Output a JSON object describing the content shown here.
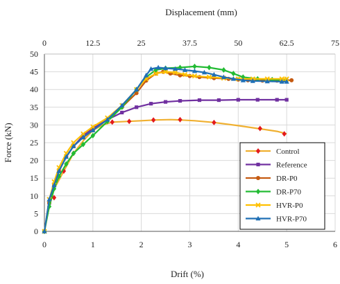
{
  "chart_data": {
    "type": "line",
    "xlabel": "Drift (%)",
    "ylabel": "Force (kN)",
    "x2label": "Displacement (mm)",
    "xlim": [
      0,
      6
    ],
    "ylim": [
      0,
      50
    ],
    "x2lim": [
      0,
      75
    ],
    "xticks": [
      "0",
      "1",
      "2",
      "3",
      "4",
      "5",
      "6"
    ],
    "x2ticks": [
      "0",
      "12.5",
      "25",
      "37.5",
      "50",
      "62.5",
      "75"
    ],
    "yticks": [
      "0",
      "5",
      "10",
      "15",
      "20",
      "25",
      "30",
      "35",
      "40",
      "45",
      "50"
    ],
    "grid": true,
    "legend_position": "bottom-right",
    "series": [
      {
        "name": "Control",
        "color": "#f0b030",
        "marker": "diamond",
        "marker_color": "#e31a1c",
        "x": [
          0,
          0.05,
          0.1,
          0.15,
          0.2,
          0.3,
          0.4,
          0.5,
          0.6,
          0.8,
          1.0,
          1.2,
          1.4,
          1.7,
          2.0,
          2.3,
          2.6,
          2.8,
          3.1,
          3.5,
          4.0,
          4.5,
          4.8,
          5.0
        ],
        "y": [
          0,
          4,
          7,
          9.5,
          12,
          14.5,
          17,
          19.5,
          22,
          25.5,
          28.5,
          30,
          30.8,
          31,
          31.2,
          31.4,
          31.5,
          31.4,
          31.2,
          30.7,
          29.8,
          28.8,
          28.2,
          27.5
        ],
        "marker_x": [
          0,
          0.2,
          0.4,
          0.6,
          1.05,
          1.4,
          1.75,
          2.25,
          2.8,
          3.5,
          4.45,
          4.95
        ],
        "marker_y": [
          0,
          9.5,
          17,
          22,
          29.5,
          30.8,
          31,
          31.4,
          31.5,
          30.7,
          29,
          27.5
        ]
      },
      {
        "name": "Reference",
        "color": "#7030a0",
        "marker": "square",
        "marker_color": "#7030a0",
        "x": [
          0,
          0.1,
          0.2,
          0.3,
          0.45,
          0.6,
          0.8,
          1.0,
          1.3,
          1.6,
          1.9,
          2.2,
          2.5,
          2.8,
          3.2,
          3.6,
          4.0,
          4.4,
          4.8,
          5.0
        ],
        "y": [
          0,
          8,
          13,
          17,
          21,
          24,
          27,
          29,
          31.5,
          33.5,
          35,
          36,
          36.5,
          36.8,
          37,
          37,
          37.1,
          37.1,
          37.1,
          37.1
        ]
      },
      {
        "name": "DR-P0",
        "color": "#c55a11",
        "marker": "circle",
        "marker_color": "#c55a11",
        "x": [
          0,
          0.1,
          0.2,
          0.3,
          0.45,
          0.6,
          0.8,
          1.0,
          1.3,
          1.6,
          1.9,
          2.1,
          2.3,
          2.45,
          2.6,
          2.8,
          3.0,
          3.2,
          3.5,
          3.8,
          4.0,
          4.2,
          4.5,
          4.8,
          5.0,
          5.1
        ],
        "y": [
          0,
          8,
          13,
          17,
          21,
          24,
          26.5,
          28.5,
          31.5,
          35,
          39,
          42.5,
          44.5,
          45,
          44.5,
          44,
          43.8,
          43.5,
          43.2,
          43,
          42.8,
          42.6,
          42.5,
          42.5,
          42.6,
          42.6
        ]
      },
      {
        "name": "DR-P70",
        "color": "#22bb33",
        "marker": "diamond",
        "marker_color": "#22bb33",
        "x": [
          0,
          0.1,
          0.2,
          0.3,
          0.45,
          0.6,
          0.8,
          1.0,
          1.3,
          1.6,
          1.9,
          2.1,
          2.3,
          2.5,
          2.8,
          3.1,
          3.4,
          3.7,
          3.9,
          4.1,
          4.4,
          4.7,
          5.0
        ],
        "y": [
          0,
          7,
          12,
          15.5,
          19,
          22,
          24.5,
          27,
          31,
          35,
          40,
          43.5,
          45.5,
          46,
          46.2,
          46.5,
          46.2,
          45.5,
          44.5,
          43.5,
          43,
          42.8,
          42.6
        ]
      },
      {
        "name": "HVR-P0",
        "color": "#ffc000",
        "marker": "cross",
        "marker_color": "#ffc000",
        "x": [
          0,
          0.1,
          0.2,
          0.3,
          0.45,
          0.6,
          0.8,
          1.0,
          1.3,
          1.6,
          1.9,
          2.1,
          2.3,
          2.5,
          2.7,
          2.9,
          3.1,
          3.4,
          3.7,
          4.0,
          4.3,
          4.6,
          4.9,
          5.0
        ],
        "y": [
          0,
          9,
          14,
          18,
          22,
          25,
          27.5,
          29.5,
          32,
          35.5,
          40,
          43,
          44.5,
          45,
          44.8,
          44.2,
          43.8,
          43.5,
          43.2,
          43,
          43,
          43,
          43,
          43
        ]
      },
      {
        "name": "HVR-P70",
        "color": "#1f6fb5",
        "marker": "triangle",
        "marker_color": "#1f6fb5",
        "x": [
          0,
          0.1,
          0.2,
          0.3,
          0.45,
          0.6,
          0.8,
          1.0,
          1.3,
          1.6,
          1.9,
          2.1,
          2.2,
          2.35,
          2.5,
          2.7,
          2.9,
          3.1,
          3.3,
          3.5,
          3.7,
          3.9,
          4.1,
          4.3,
          4.6,
          4.9,
          5.0
        ],
        "y": [
          0,
          9,
          13,
          17,
          21,
          24,
          26.5,
          28.5,
          31.5,
          35.5,
          40,
          44,
          45.8,
          46.2,
          46,
          45.8,
          45.5,
          45.2,
          44.8,
          44.2,
          43.5,
          43,
          42.6,
          42.4,
          42.3,
          42.2,
          42.2
        ]
      }
    ]
  }
}
